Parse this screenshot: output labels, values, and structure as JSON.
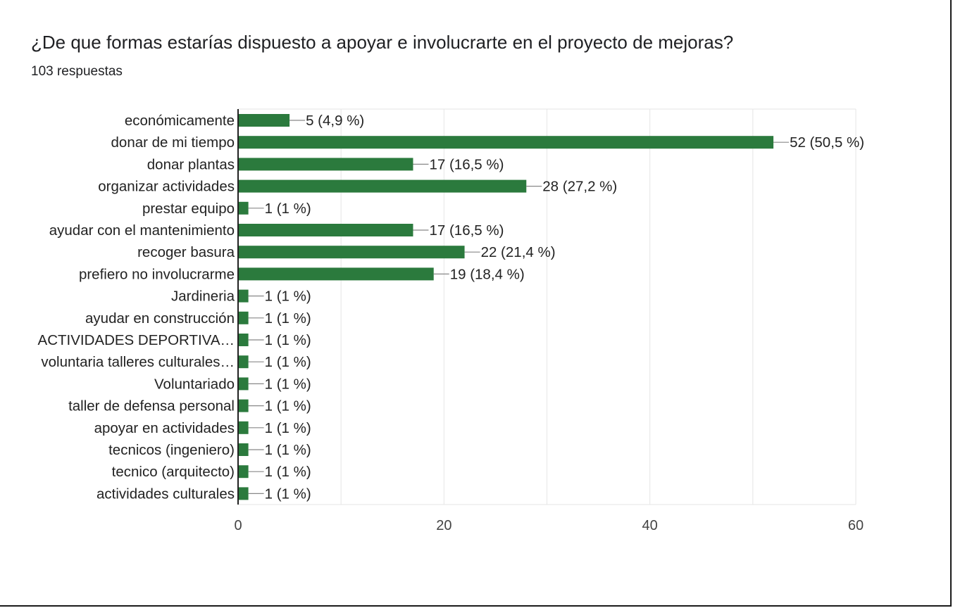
{
  "question": {
    "title": "¿De que formas estarías dispuesto a apoyar e involucrarte en el proyecto de mejoras?",
    "responses": "103 respuestas"
  },
  "colors": {
    "bar": "#2b7a3d",
    "grid": "#e6e6e6",
    "axis": "#222222"
  },
  "chart_data": {
    "type": "bar",
    "orientation": "horizontal",
    "categories": [
      "económicamente",
      "donar de mi tiempo",
      "donar plantas",
      "organizar actividades",
      "prestar equipo",
      "ayudar con el mantenimiento",
      "recoger basura",
      "prefiero no involucrarme",
      "Jardineria",
      "ayudar en construcción",
      "ACTIVIDADES DEPORTIVA…",
      "voluntaria talleres culturales…",
      "Voluntariado",
      "taller de defensa personal",
      "apoyar en actividades",
      "tecnicos (ingeniero)",
      "tecnico (arquitecto)",
      "actividades culturales"
    ],
    "values": [
      5,
      52,
      17,
      28,
      1,
      17,
      22,
      19,
      1,
      1,
      1,
      1,
      1,
      1,
      1,
      1,
      1,
      1
    ],
    "data_labels": [
      "5 (4,9 %)",
      "52 (50,5 %)",
      "17 (16,5 %)",
      "28 (27,2 %)",
      "1 (1 %)",
      "17 (16,5 %)",
      "22 (21,4 %)",
      "19 (18,4 %)",
      "1 (1 %)",
      "1 (1 %)",
      "1 (1 %)",
      "1 (1 %)",
      "1 (1 %)",
      "1 (1 %)",
      "1 (1 %)",
      "1 (1 %)",
      "1 (1 %)",
      "1 (1 %)"
    ],
    "xlim": [
      0,
      60
    ],
    "xticks": [
      0,
      20,
      40,
      60
    ],
    "minor_gridlines": [
      10,
      30,
      50
    ],
    "grid": true,
    "legend": "none"
  }
}
